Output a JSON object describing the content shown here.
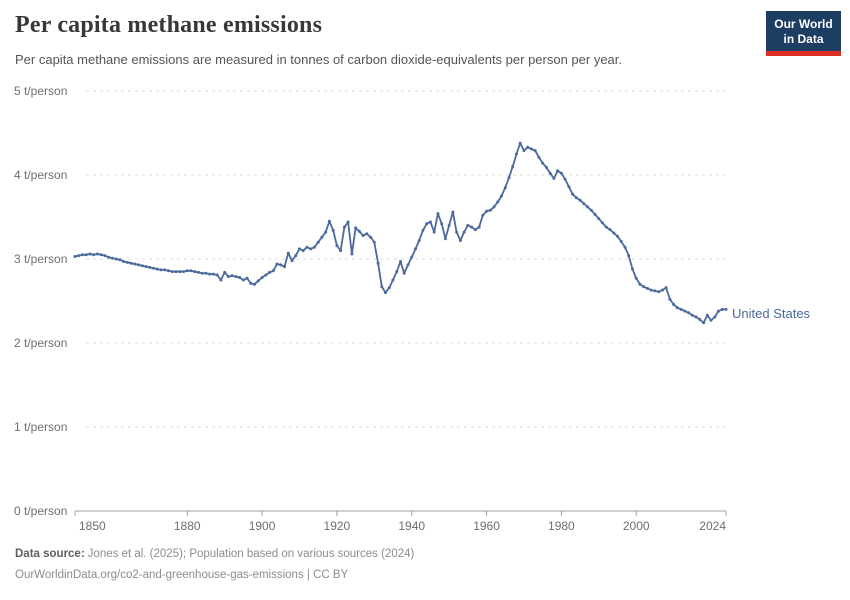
{
  "header": {
    "title": "Per capita methane emissions",
    "subtitle": "Per capita methane emissions are measured in tonnes of carbon dioxide-equivalents per person per year.",
    "logo": {
      "line1": "Our World",
      "line2": "in Data"
    }
  },
  "chart_data": {
    "type": "line",
    "title": "Per capita methane emissions",
    "unit": "t/person",
    "xlim": [
      1850,
      2024
    ],
    "ylim": [
      0,
      5
    ],
    "grid": "horizontal-dashed",
    "legend_position": "end-of-line",
    "x_start": 1850,
    "x_end": 2024,
    "x_step": 1,
    "x_ticks": [
      {
        "year": 1850,
        "label": "1850"
      },
      {
        "year": 1880,
        "label": "1880"
      },
      {
        "year": 1900,
        "label": "1900"
      },
      {
        "year": 1920,
        "label": "1920"
      },
      {
        "year": 1940,
        "label": "1940"
      },
      {
        "year": 1960,
        "label": "1960"
      },
      {
        "year": 1980,
        "label": "1980"
      },
      {
        "year": 2000,
        "label": "2000"
      },
      {
        "year": 2024,
        "label": "2024"
      }
    ],
    "y_ticks": [
      {
        "value": 5,
        "label": "5 t/person"
      },
      {
        "value": 4,
        "label": "4 t/person"
      },
      {
        "value": 3,
        "label": "3 t/person"
      },
      {
        "value": 2,
        "label": "2 t/person"
      },
      {
        "value": 1,
        "label": "1 t/person"
      },
      {
        "value": 0,
        "label": "0 t/person"
      }
    ],
    "series": [
      {
        "name": "United States",
        "color": "#4c6a9c",
        "values": [
          3.03,
          3.04,
          3.05,
          3.05,
          3.06,
          3.05,
          3.06,
          3.05,
          3.04,
          3.02,
          3.01,
          3.0,
          2.99,
          2.97,
          2.96,
          2.95,
          2.94,
          2.93,
          2.92,
          2.91,
          2.9,
          2.89,
          2.88,
          2.87,
          2.87,
          2.86,
          2.85,
          2.85,
          2.85,
          2.85,
          2.86,
          2.86,
          2.85,
          2.84,
          2.83,
          2.83,
          2.82,
          2.82,
          2.81,
          2.75,
          2.84,
          2.79,
          2.8,
          2.79,
          2.78,
          2.75,
          2.77,
          2.71,
          2.7,
          2.74,
          2.78,
          2.81,
          2.84,
          2.86,
          2.94,
          2.93,
          2.91,
          3.07,
          2.98,
          3.04,
          3.12,
          3.1,
          3.14,
          3.12,
          3.14,
          3.2,
          3.26,
          3.32,
          3.45,
          3.34,
          3.16,
          3.1,
          3.38,
          3.44,
          3.06,
          3.37,
          3.33,
          3.28,
          3.3,
          3.26,
          3.2,
          2.95,
          2.67,
          2.6,
          2.66,
          2.75,
          2.85,
          2.97,
          2.83,
          2.93,
          3.02,
          3.12,
          3.22,
          3.34,
          3.42,
          3.44,
          3.32,
          3.54,
          3.42,
          3.24,
          3.4,
          3.56,
          3.32,
          3.22,
          3.32,
          3.4,
          3.38,
          3.35,
          3.38,
          3.52,
          3.57,
          3.58,
          3.62,
          3.68,
          3.75,
          3.85,
          3.97,
          4.1,
          4.25,
          4.38,
          4.29,
          4.33,
          4.31,
          4.29,
          4.21,
          4.14,
          4.09,
          4.02,
          3.96,
          4.05,
          4.02,
          3.95,
          3.86,
          3.77,
          3.73,
          3.7,
          3.66,
          3.62,
          3.58,
          3.53,
          3.48,
          3.43,
          3.38,
          3.35,
          3.31,
          3.27,
          3.21,
          3.14,
          3.04,
          2.88,
          2.77,
          2.7,
          2.67,
          2.65,
          2.63,
          2.62,
          2.61,
          2.63,
          2.66,
          2.52,
          2.46,
          2.42,
          2.4,
          2.38,
          2.36,
          2.33,
          2.31,
          2.28,
          2.24,
          2.33,
          2.27,
          2.31,
          2.38,
          2.4,
          2.4
        ]
      }
    ]
  },
  "footer": {
    "datasource_label": "Data source:",
    "datasource_text": "Jones et al. (2025); Population based on various sources (2024)",
    "link_line": "OurWorldinData.org/co2-and-greenhouse-gas-emissions | CC BY"
  },
  "colors": {
    "series_blue": "#4c6a9c",
    "logo_background": "#1d3d63",
    "logo_red": "#dc2e22",
    "gridline": "#dddddd",
    "axis_line": "#a0a0a0",
    "tick_text": "#6e6e6e",
    "title_text": "#383838",
    "subtitle_text": "#555555",
    "footer_text": "#8c8c8c"
  }
}
